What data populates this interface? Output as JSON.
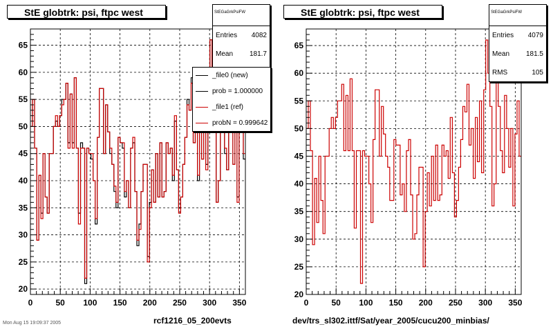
{
  "chart_data": [
    {
      "type": "line",
      "title": "StE globtrk: psi, ftpc west",
      "xlabel": "rcf1216_05_200evts",
      "ylabel": "",
      "xlim": [
        0,
        360
      ],
      "ylim": [
        19,
        68
      ],
      "x_ticks": [
        0,
        50,
        100,
        150,
        200,
        250,
        300,
        350
      ],
      "y_ticks": [
        20,
        25,
        30,
        35,
        40,
        45,
        50,
        55,
        60,
        65
      ],
      "grid": true,
      "stats": {
        "name": "StEGaGrkPsiFW",
        "rows": [
          {
            "label": "Entries",
            "value": "4082"
          },
          {
            "label": "Mean",
            "value": "181.7"
          }
        ]
      },
      "legend": [
        {
          "label": "_file0 (new)",
          "color": "#000000"
        },
        {
          "label": "prob = 1.000000",
          "color": "#000000"
        },
        {
          "label": "_file1 (ref)",
          "color": "#cc0000"
        },
        {
          "label": "probN = 0.999642",
          "color": "#cc0000"
        }
      ],
      "series": [
        {
          "color": "#000000",
          "values": [
            50,
            55,
            46,
            29,
            41,
            34,
            45,
            37,
            34,
            45,
            45,
            50,
            51,
            50,
            52,
            55,
            55,
            58,
            47,
            56,
            47,
            59,
            46,
            34,
            47,
            46,
            21,
            46,
            45,
            44,
            40,
            32,
            48,
            57,
            57,
            45,
            54,
            49,
            45,
            43,
            38,
            35,
            48,
            47,
            46,
            37,
            40,
            35,
            46,
            47,
            38,
            28,
            32,
            38,
            43,
            43,
            26,
            36,
            42,
            36,
            45,
            37,
            47,
            37,
            38,
            47,
            45,
            46,
            40,
            51,
            42,
            35,
            37,
            43,
            48,
            55,
            53,
            59,
            47,
            50,
            40,
            52,
            44,
            54,
            43,
            56,
            66,
            61,
            54,
            36,
            40,
            60,
            54,
            45,
            42,
            56,
            50,
            43,
            51,
            37,
            49,
            55,
            44
          ]
        },
        {
          "color": "#cc0000",
          "values": [
            50,
            55,
            46,
            29,
            41,
            33,
            45,
            37,
            34,
            45,
            45,
            50,
            52,
            50,
            52,
            54,
            55,
            58,
            46,
            56,
            46,
            59,
            46,
            32,
            46,
            46,
            22,
            46,
            45,
            45,
            40,
            33,
            48,
            57,
            57,
            45,
            54,
            49,
            46,
            43,
            39,
            36,
            48,
            47,
            47,
            38,
            40,
            35,
            46,
            48,
            38,
            29,
            31,
            38,
            43,
            43,
            25,
            35,
            42,
            36,
            45,
            37,
            47,
            37,
            38,
            47,
            45,
            46,
            41,
            52,
            42,
            34,
            37,
            43,
            48,
            54,
            53,
            58,
            47,
            50,
            41,
            52,
            44,
            55,
            42,
            57,
            66,
            60,
            54,
            36,
            40,
            60,
            54,
            46,
            42,
            56,
            50,
            43,
            50,
            36,
            49,
            55,
            45
          ]
        }
      ]
    },
    {
      "type": "line",
      "title": "StE globtrk: psi, ftpc west",
      "xlabel": "dev/trs_sl302.ittf/Sat/year_2005/cucu200_minbias/",
      "ylabel": "",
      "xlim": [
        0,
        360
      ],
      "ylim": [
        20,
        68
      ],
      "x_ticks": [
        0,
        50,
        100,
        150,
        200,
        250,
        300,
        350
      ],
      "y_ticks": [
        20,
        25,
        30,
        35,
        40,
        45,
        50,
        55,
        60,
        65
      ],
      "grid": true,
      "stats": {
        "name": "StEGaGrkPsiFW",
        "rows": [
          {
            "label": "Entries",
            "value": "4079"
          },
          {
            "label": "Mean",
            "value": "181.5"
          },
          {
            "label": "RMS",
            "value": "105"
          }
        ]
      },
      "series": [
        {
          "color": "#cc0000",
          "values": [
            50,
            55,
            46,
            29,
            41,
            33,
            45,
            37,
            31,
            45,
            45,
            50,
            52,
            50,
            52,
            55,
            55,
            58,
            46,
            56,
            46,
            59,
            46,
            32,
            46,
            46,
            22,
            46,
            45,
            45,
            40,
            33,
            48,
            57,
            57,
            45,
            54,
            49,
            45,
            43,
            37,
            37,
            48,
            47,
            47,
            38,
            40,
            35,
            46,
            48,
            38,
            30,
            31,
            38,
            43,
            43,
            25,
            35,
            42,
            36,
            45,
            37,
            47,
            37,
            38,
            47,
            45,
            46,
            41,
            52,
            42,
            34,
            37,
            43,
            48,
            54,
            53,
            58,
            47,
            50,
            41,
            52,
            44,
            55,
            42,
            57,
            66,
            60,
            54,
            36,
            40,
            60,
            54,
            46,
            42,
            56,
            50,
            43,
            50,
            36,
            49,
            55,
            45
          ]
        }
      ]
    }
  ],
  "footer": {
    "text": "Mon Aug 15 19:09:37 2005"
  }
}
